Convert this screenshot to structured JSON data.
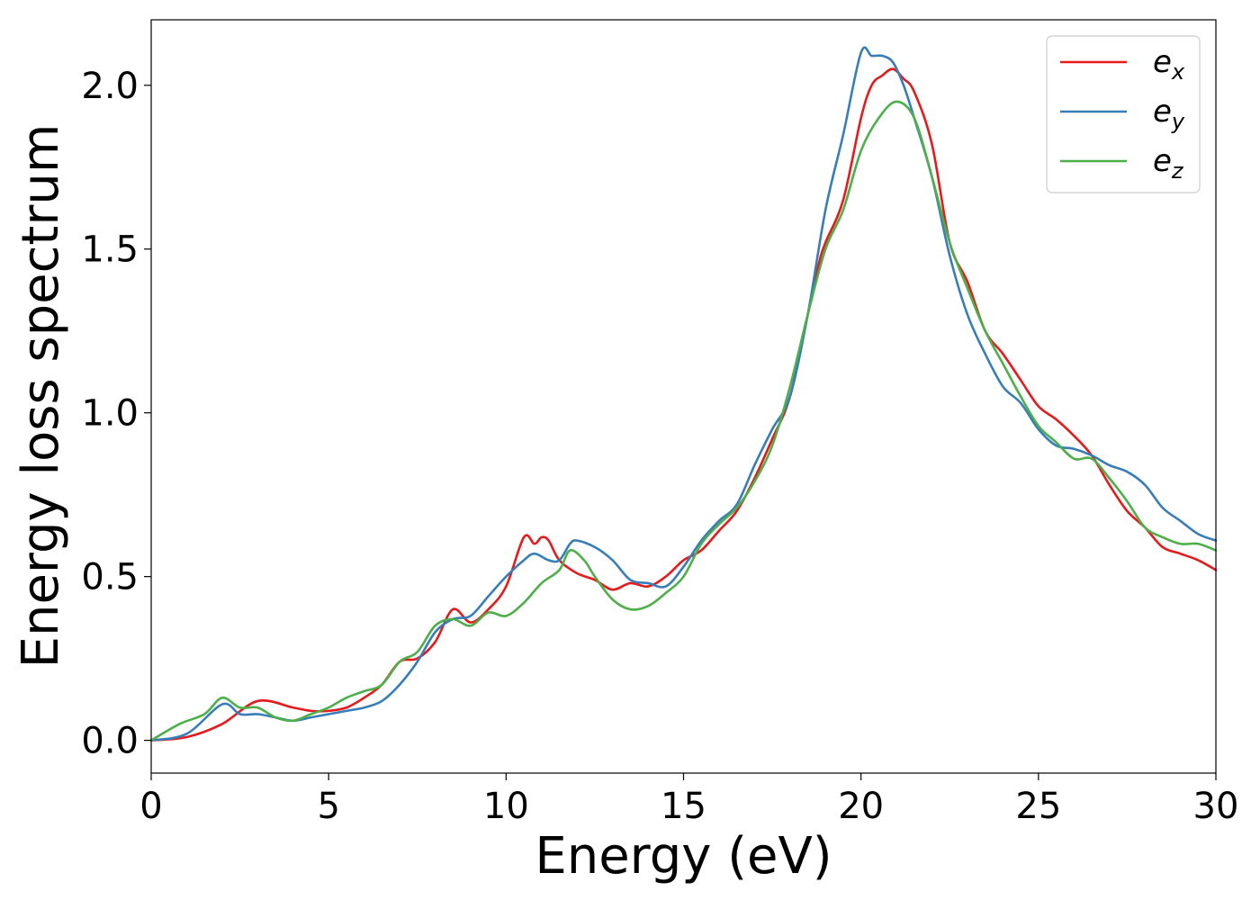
{
  "chart_data": {
    "type": "line",
    "xlabel": "Energy (eV)",
    "ylabel": "Energy loss spectrum",
    "xlim": [
      0,
      30
    ],
    "ylim": [
      -0.1,
      2.2
    ],
    "xticks": [
      0,
      5,
      10,
      15,
      20,
      25,
      30
    ],
    "xtick_labels": [
      "0",
      "5",
      "10",
      "15",
      "20",
      "25",
      "30"
    ],
    "yticks": [
      0.0,
      0.5,
      1.0,
      1.5,
      2.0
    ],
    "ytick_labels": [
      "0.0",
      "0.5",
      "1.0",
      "1.5",
      "2.0"
    ],
    "grid": false,
    "legend_position": "top-right",
    "series": [
      {
        "name": "e_x",
        "legend": {
          "base": "e",
          "sub": "x"
        },
        "color": "#e41a1c",
        "x": [
          0,
          1,
          2,
          3,
          4,
          4.5,
          5,
          5.5,
          6,
          6.5,
          7,
          7.5,
          8,
          8.5,
          9,
          9.5,
          10,
          10.5,
          10.8,
          11,
          11.2,
          11.5,
          12,
          12.5,
          13,
          13.5,
          14,
          14.5,
          15,
          15.5,
          16,
          16.5,
          17,
          17.5,
          18,
          18.5,
          18.8,
          19,
          19.5,
          20,
          20.3,
          20.6,
          20.9,
          21.2,
          21.5,
          22,
          22.5,
          23,
          23.5,
          24,
          24.5,
          25,
          25.5,
          26,
          26.5,
          27,
          27.5,
          28,
          28.5,
          29,
          29.5,
          30
        ],
        "y": [
          0,
          0.01,
          0.05,
          0.12,
          0.1,
          0.09,
          0.09,
          0.1,
          0.13,
          0.17,
          0.24,
          0.25,
          0.3,
          0.4,
          0.36,
          0.4,
          0.47,
          0.62,
          0.6,
          0.62,
          0.61,
          0.55,
          0.51,
          0.49,
          0.46,
          0.48,
          0.47,
          0.5,
          0.55,
          0.58,
          0.64,
          0.7,
          0.8,
          0.92,
          1.05,
          1.3,
          1.45,
          1.52,
          1.65,
          1.9,
          2.0,
          2.03,
          2.05,
          2.02,
          1.98,
          1.82,
          1.52,
          1.4,
          1.25,
          1.18,
          1.1,
          1.02,
          0.98,
          0.93,
          0.87,
          0.78,
          0.7,
          0.65,
          0.59,
          0.57,
          0.55,
          0.52
        ]
      },
      {
        "name": "e_y",
        "legend": {
          "base": "e",
          "sub": "y"
        },
        "color": "#377eb8",
        "x": [
          0,
          1,
          2,
          2.5,
          3,
          3.5,
          4,
          4.5,
          5,
          5.5,
          6,
          6.5,
          7,
          7.5,
          8,
          8.5,
          9,
          9.5,
          10,
          10.5,
          10.8,
          11.2,
          11.5,
          11.8,
          12,
          12.5,
          13,
          13.5,
          14,
          14.5,
          15,
          15.5,
          16,
          16.5,
          17,
          17.5,
          18,
          18.5,
          19,
          19.5,
          20,
          20.3,
          20.6,
          20.9,
          21.2,
          21.5,
          22,
          22.5,
          23,
          23.5,
          24,
          24.5,
          25,
          25.5,
          26,
          26.5,
          27,
          27.5,
          28,
          28.5,
          29,
          29.5,
          30
        ],
        "y": [
          0,
          0.02,
          0.11,
          0.08,
          0.08,
          0.07,
          0.06,
          0.07,
          0.08,
          0.09,
          0.1,
          0.12,
          0.17,
          0.24,
          0.33,
          0.37,
          0.38,
          0.44,
          0.5,
          0.55,
          0.57,
          0.55,
          0.55,
          0.6,
          0.61,
          0.59,
          0.55,
          0.49,
          0.48,
          0.47,
          0.53,
          0.61,
          0.67,
          0.72,
          0.84,
          0.95,
          1.05,
          1.3,
          1.62,
          1.85,
          2.1,
          2.09,
          2.09,
          2.07,
          2.0,
          1.9,
          1.72,
          1.48,
          1.3,
          1.18,
          1.08,
          1.03,
          0.95,
          0.9,
          0.89,
          0.87,
          0.84,
          0.82,
          0.78,
          0.71,
          0.67,
          0.63,
          0.61
        ]
      },
      {
        "name": "e_z",
        "legend": {
          "base": "e",
          "sub": "z"
        },
        "color": "#4daf4a",
        "x": [
          0,
          0.8,
          1.5,
          2,
          2.5,
          3,
          3.5,
          4,
          4.5,
          5,
          5.5,
          6,
          6.5,
          7,
          7.5,
          8,
          8.5,
          9,
          9.5,
          10,
          10.5,
          11,
          11.5,
          11.8,
          12.2,
          12.5,
          13,
          13.5,
          14,
          14.5,
          15,
          15.5,
          16,
          16.5,
          17,
          17.5,
          18,
          18.5,
          19,
          19.5,
          20,
          20.5,
          21,
          21.5,
          22,
          22.5,
          23,
          23.5,
          24,
          24.5,
          25,
          25.5,
          26,
          26.5,
          27,
          27.5,
          28,
          28.5,
          29,
          29.5,
          30
        ],
        "y": [
          0,
          0.05,
          0.08,
          0.13,
          0.1,
          0.1,
          0.07,
          0.06,
          0.08,
          0.1,
          0.13,
          0.15,
          0.17,
          0.24,
          0.27,
          0.35,
          0.37,
          0.35,
          0.39,
          0.38,
          0.42,
          0.48,
          0.52,
          0.58,
          0.55,
          0.5,
          0.43,
          0.4,
          0.41,
          0.45,
          0.5,
          0.6,
          0.66,
          0.71,
          0.79,
          0.9,
          1.08,
          1.3,
          1.5,
          1.62,
          1.8,
          1.9,
          1.95,
          1.9,
          1.72,
          1.52,
          1.38,
          1.25,
          1.15,
          1.05,
          0.96,
          0.91,
          0.86,
          0.86,
          0.8,
          0.73,
          0.65,
          0.62,
          0.6,
          0.6,
          0.58
        ]
      }
    ]
  }
}
